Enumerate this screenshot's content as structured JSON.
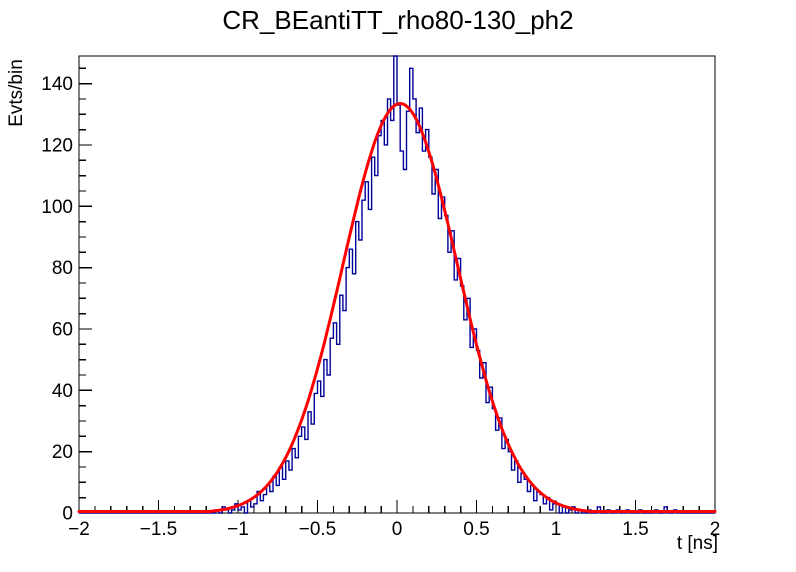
{
  "chart_data": {
    "type": "bar",
    "subtype": "step-histogram-with-fit",
    "title": "CR_BEantiTT_rho80-130_ph2",
    "xlabel": "t [ns]",
    "ylabel": "Evts/bin",
    "xlim": [
      -2,
      2
    ],
    "ylim": [
      0,
      149
    ],
    "grid": false,
    "legend": "none",
    "x_major_ticks": [
      -2,
      -1.5,
      -1,
      -0.5,
      0,
      0.5,
      1,
      1.5,
      2
    ],
    "x_tick_labels": [
      "−2",
      "−1.5",
      "−1",
      "−0.5",
      "0",
      "0.5",
      "1",
      "1.5",
      "2"
    ],
    "x_minor_step": 0.1,
    "y_major_ticks": [
      0,
      20,
      40,
      60,
      80,
      100,
      120,
      140
    ],
    "y_tick_labels": [
      "0",
      "20",
      "40",
      "60",
      "80",
      "100",
      "120",
      "140"
    ],
    "y_minor_step": 5,
    "colors": {
      "frame": "#000000",
      "histogram": "#00009a",
      "fit": "#ff0000",
      "background": "#ffffff",
      "text": "#000000"
    },
    "series": [
      {
        "name": "data-histogram",
        "type": "step-histogram",
        "color": "#00009a",
        "bin_start": -2,
        "bin_width": 0.02,
        "values": [
          0,
          0,
          0,
          0,
          0,
          0,
          0,
          0,
          0,
          0,
          0,
          0,
          0,
          0,
          0,
          0,
          0,
          0,
          0,
          0,
          0,
          0,
          0,
          0,
          0,
          0,
          0,
          0,
          0,
          0,
          0,
          0,
          0,
          0,
          0,
          0,
          0,
          0,
          0,
          0,
          0,
          0,
          0,
          1,
          0,
          2,
          1,
          0,
          1,
          3,
          1,
          2,
          0,
          4,
          2,
          3,
          7,
          4,
          6,
          9,
          7,
          12,
          9,
          15,
          11,
          17,
          14,
          21,
          18,
          25,
          28,
          24,
          33,
          29,
          39,
          43,
          38,
          50,
          45,
          57,
          62,
          55,
          71,
          66,
          80,
          86,
          78,
          95,
          89,
          102,
          108,
          99,
          116,
          110,
          123,
          128,
          120,
          135,
          128,
          149,
          133,
          118,
          112,
          131,
          145,
          135,
          124,
          132,
          118,
          125,
          116,
          104,
          112,
          96,
          103,
          97,
          85,
          92,
          76,
          83,
          74,
          63,
          70,
          54,
          60,
          53,
          44,
          49,
          36,
          41,
          34,
          27,
          31,
          21,
          24,
          20,
          14,
          17,
          10,
          13,
          11,
          7,
          9,
          4,
          7,
          6,
          3,
          5,
          1,
          3,
          3,
          0,
          2,
          0,
          1,
          2,
          0,
          1,
          0,
          0,
          1,
          0,
          0,
          2,
          0,
          0,
          1,
          0,
          0,
          1,
          0,
          0,
          1,
          0,
          0,
          0,
          1,
          0,
          0,
          0,
          0,
          1,
          0,
          0,
          2,
          0,
          0,
          1,
          0,
          0,
          0,
          0,
          0,
          0,
          0,
          0,
          0,
          0,
          0,
          0
        ]
      },
      {
        "name": "gaussian-fit",
        "type": "gaussian",
        "color": "#ff0000",
        "amplitude": 133.5,
        "mean": 0.02,
        "sigma": 0.36
      }
    ]
  }
}
